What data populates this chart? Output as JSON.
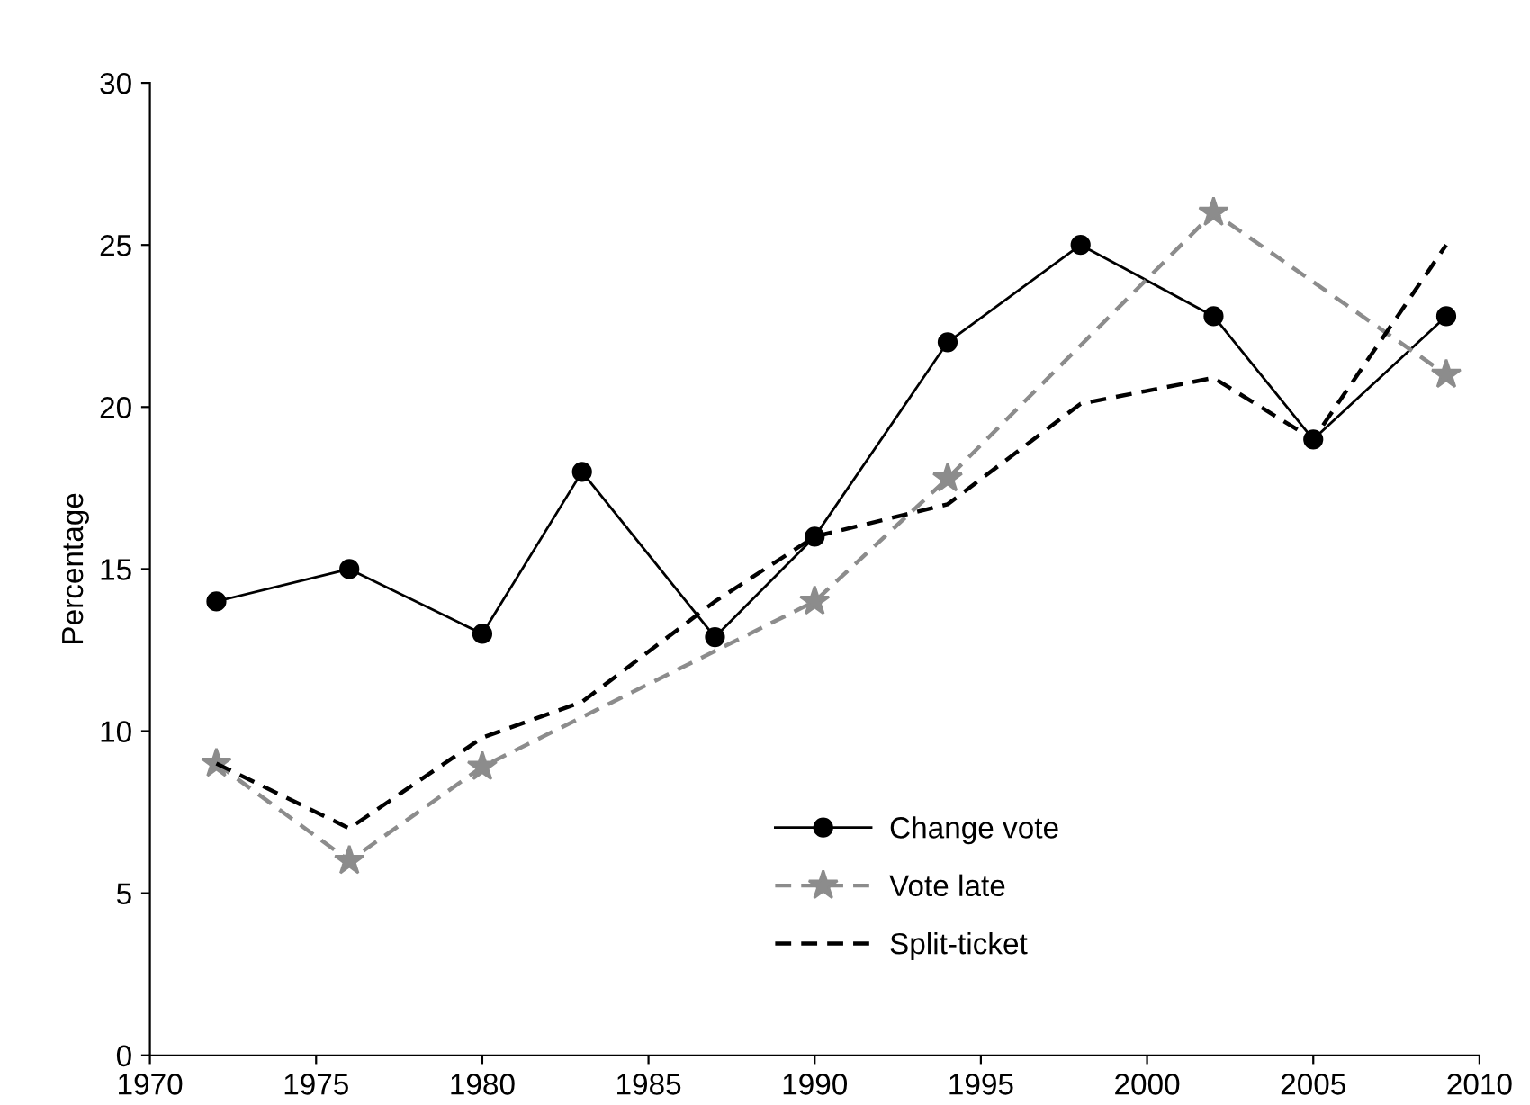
{
  "chart_data": {
    "type": "line",
    "ylabel": "Percentage",
    "xlim": [
      1970,
      2010
    ],
    "xticks": [
      1970,
      1975,
      1980,
      1985,
      1990,
      1995,
      2000,
      2005,
      2010
    ],
    "ylim": [
      0,
      30
    ],
    "yticks": [
      0,
      5,
      10,
      15,
      20,
      25,
      30
    ],
    "grid": false,
    "legend": "bottom right",
    "series": [
      {
        "name": "Change vote",
        "color": "#000000",
        "marker": "circle",
        "line_style": "solid",
        "x": [
          1972,
          1976,
          1980,
          1983,
          1987,
          1990,
          1994,
          1998,
          2002,
          2005,
          2009
        ],
        "values": [
          14,
          15,
          13,
          18,
          12.9,
          16,
          22,
          25,
          22.8,
          19,
          22.8
        ]
      },
      {
        "name": "Vote late",
        "color": "#8c8c8c",
        "marker": "star",
        "line_style": "dashed",
        "x": [
          1972,
          1976,
          1980,
          1990,
          1994,
          2002,
          2009
        ],
        "values": [
          9,
          6,
          8.9,
          14,
          17.8,
          26,
          21
        ]
      },
      {
        "name": "Split-ticket",
        "color": "#000000",
        "marker": "none",
        "line_style": "dashed",
        "x": [
          1972,
          1976,
          1980,
          1983,
          1987,
          1990,
          1994,
          1998,
          2002,
          2005,
          2009
        ],
        "values": [
          9,
          7,
          9.8,
          10.9,
          14,
          16,
          17,
          20.1,
          20.9,
          19,
          25
        ]
      }
    ]
  }
}
